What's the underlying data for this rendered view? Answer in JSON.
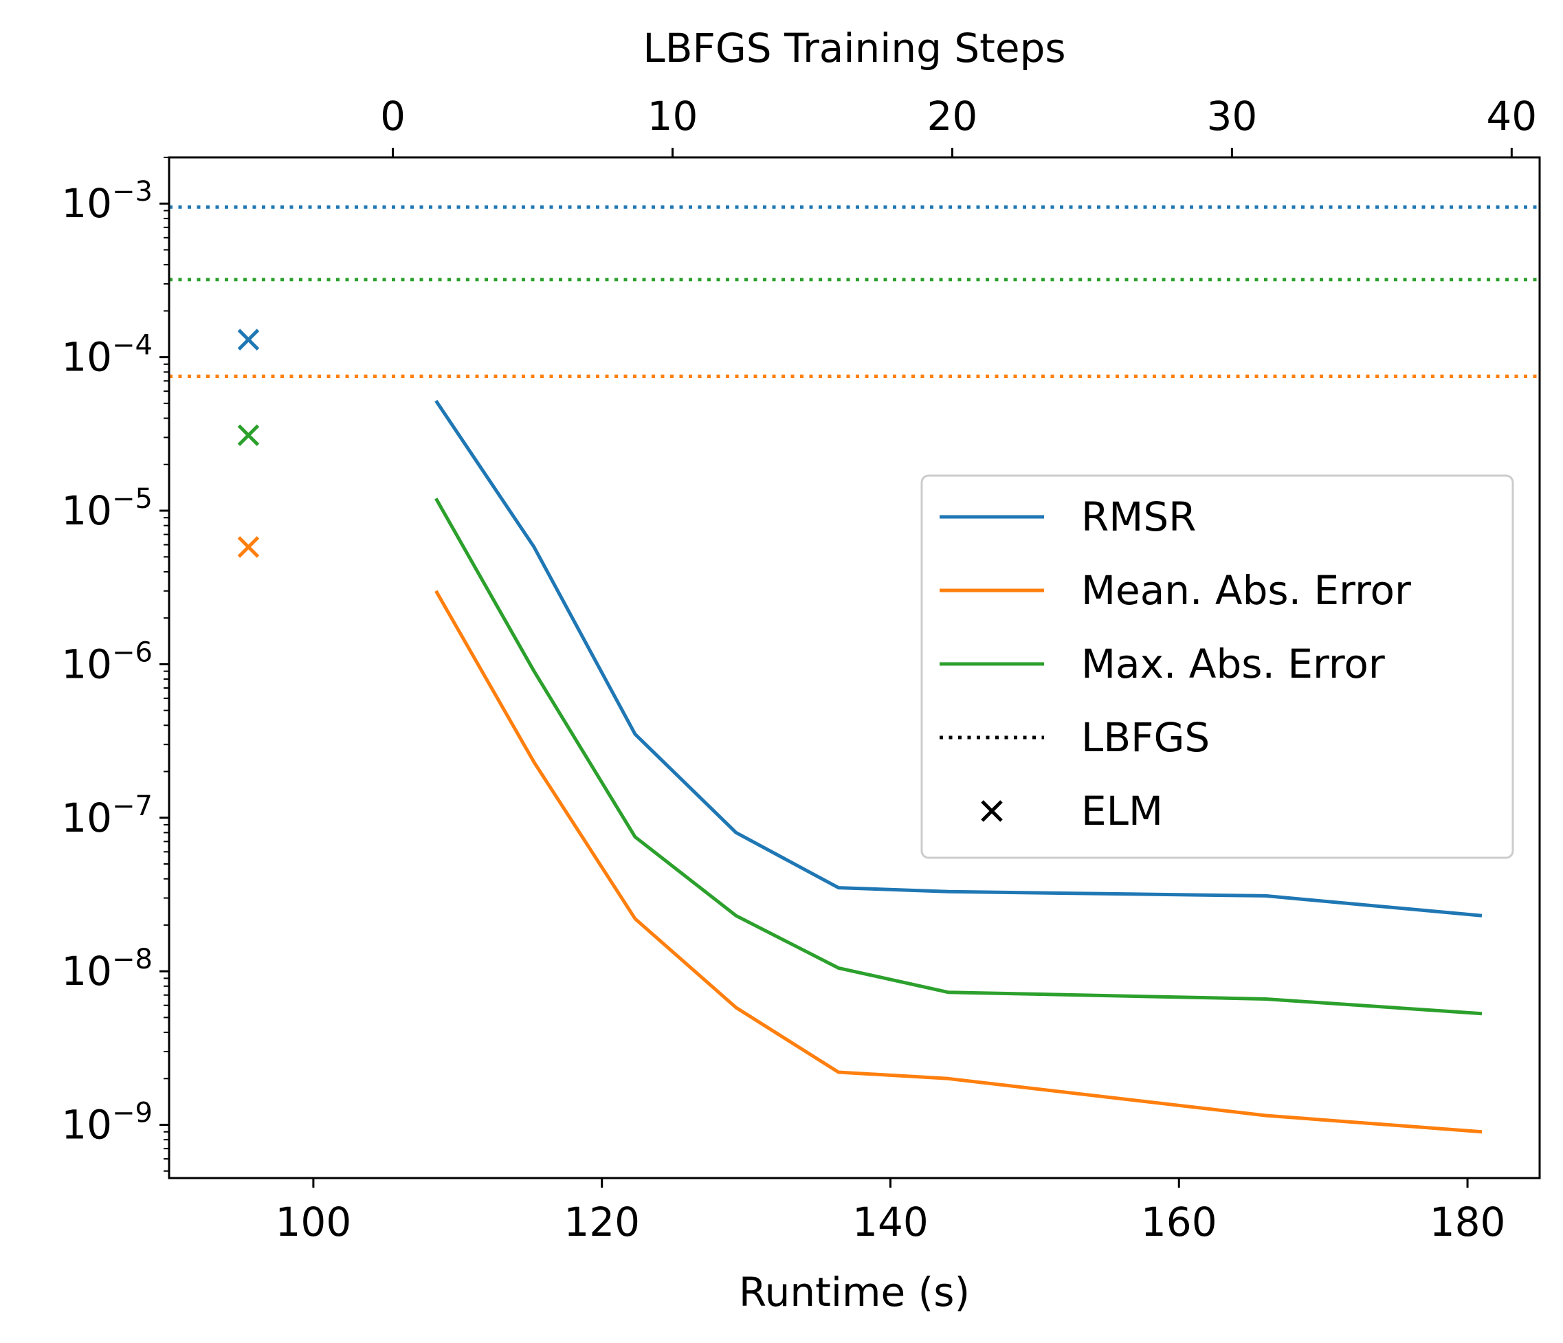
{
  "chart_data": {
    "type": "line",
    "top_axis": {
      "label": "LBFGS Training Steps",
      "ticks": [
        "0",
        "10",
        "20",
        "30",
        "40"
      ],
      "tick_values": [
        0,
        10,
        20,
        30,
        40
      ],
      "range": [
        -8,
        41
      ]
    },
    "x_axis": {
      "label": "Runtime (s)",
      "ticks": [
        "100",
        "120",
        "140",
        "160",
        "180"
      ],
      "tick_values": [
        100,
        120,
        140,
        160,
        180
      ],
      "range": [
        90,
        185
      ]
    },
    "y_axis": {
      "scale": "log",
      "ticks": [
        {
          "base": "10",
          "exp": "−3",
          "value": 0.001
        },
        {
          "base": "10",
          "exp": "−4",
          "value": 0.0001
        },
        {
          "base": "10",
          "exp": "−5",
          "value": 1e-05
        },
        {
          "base": "10",
          "exp": "−6",
          "value": 1e-06
        },
        {
          "base": "10",
          "exp": "−7",
          "value": 1e-07
        },
        {
          "base": "10",
          "exp": "−8",
          "value": 1e-08
        },
        {
          "base": "10",
          "exp": "−9",
          "value": 1e-09
        }
      ],
      "range": [
        4.5e-10,
        0.002
      ]
    },
    "x": [
      108.5,
      115.3,
      122.3,
      129.3,
      136.4,
      144,
      166,
      181
    ],
    "series": [
      {
        "name": "RMSR",
        "color": "#1f77b4",
        "values": [
          5.2e-05,
          5.8e-06,
          3.5e-07,
          8e-08,
          3.5e-08,
          3.3e-08,
          3.1e-08,
          2.3e-08
        ],
        "lbfgs": 0.00095,
        "elm": 0.00013
      },
      {
        "name": "Mean. Abs. Error",
        "color": "#ff7f0e",
        "values": [
          3e-06,
          2.3e-07,
          2.2e-08,
          5.8e-09,
          2.2e-09,
          2e-09,
          1.15e-09,
          9e-10
        ],
        "lbfgs": 7.5e-05,
        "elm": 5.8e-06
      },
      {
        "name": "Max. Abs. Error",
        "color": "#2ca02c",
        "values": [
          1.2e-05,
          9e-07,
          7.5e-08,
          2.3e-08,
          1.05e-08,
          7.3e-09,
          6.6e-09,
          5.3e-09
        ],
        "lbfgs": 0.00032,
        "elm": 3.1e-05
      }
    ],
    "elm_runtime": 95.5,
    "grid": false,
    "legend": {
      "placement": "center-right",
      "entries": [
        {
          "label": "RMSR",
          "style": "line",
          "color": "#1f77b4"
        },
        {
          "label": "Mean. Abs. Error",
          "style": "line",
          "color": "#ff7f0e"
        },
        {
          "label": "Max. Abs. Error",
          "style": "line",
          "color": "#2ca02c"
        },
        {
          "label": "LBFGS",
          "style": "dotted",
          "color": "#000000"
        },
        {
          "label": "ELM",
          "style": "x",
          "color": "#000000"
        }
      ]
    }
  }
}
